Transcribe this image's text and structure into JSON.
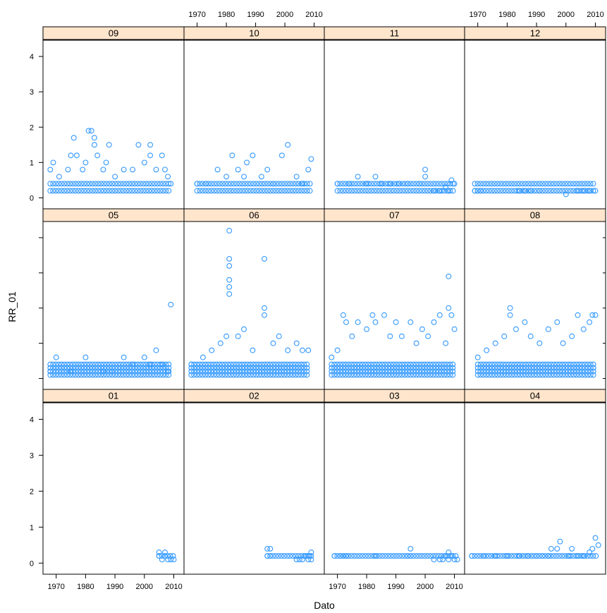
{
  "chart_data": {
    "type": "scatter",
    "title": "",
    "xlabel": "Dato",
    "ylabel": "RR_01",
    "xlim": [
      1966,
      2013
    ],
    "ylim": [
      -0.25,
      4.4
    ],
    "x_ticks": [
      "1970",
      "1980",
      "1990",
      "2000",
      "2010"
    ],
    "y_ticks": [
      "0",
      "1",
      "2",
      "3",
      "4"
    ],
    "grid": false,
    "legend": "none",
    "point_color": "#3399ff",
    "strip_color": "#ffe5cc",
    "panels": [
      {
        "label": "09",
        "row": 0,
        "col": 0,
        "points": [
          [
            1968,
            0.8
          ],
          [
            1969,
            1.0
          ],
          [
            1971,
            0.6
          ],
          [
            1974,
            0.8
          ],
          [
            1975,
            1.2
          ],
          [
            1976,
            1.7
          ],
          [
            1977,
            1.2
          ],
          [
            1979,
            0.8
          ],
          [
            1980,
            1.0
          ],
          [
            1981,
            1.9
          ],
          [
            1982,
            1.9
          ],
          [
            1983,
            1.5
          ],
          [
            1983,
            1.7
          ],
          [
            1984,
            1.2
          ],
          [
            1986,
            0.8
          ],
          [
            1987,
            1.0
          ],
          [
            1988,
            1.5
          ],
          [
            1990,
            0.6
          ],
          [
            1993,
            0.8
          ],
          [
            1996,
            0.8
          ],
          [
            1998,
            1.5
          ],
          [
            2000,
            1.0
          ],
          [
            2002,
            1.5
          ],
          [
            2002,
            1.2
          ],
          [
            2004,
            0.8
          ],
          [
            2006,
            1.2
          ],
          [
            2007,
            0.8
          ],
          [
            2008,
            0.6
          ],
          [
            2009,
            0.4
          ]
        ]
      },
      {
        "label": "10",
        "row": 0,
        "col": 1,
        "points": [
          [
            1970,
            0.4
          ],
          [
            1973,
            0.4
          ],
          [
            1977,
            0.8
          ],
          [
            1980,
            0.6
          ],
          [
            1982,
            1.2
          ],
          [
            1984,
            0.8
          ],
          [
            1986,
            0.6
          ],
          [
            1987,
            1.0
          ],
          [
            1989,
            1.2
          ],
          [
            1992,
            0.6
          ],
          [
            1994,
            0.8
          ],
          [
            1996,
            0.4
          ],
          [
            1999,
            1.2
          ],
          [
            2001,
            1.5
          ],
          [
            2004,
            0.6
          ],
          [
            2006,
            0.4
          ],
          [
            2008,
            0.8
          ],
          [
            2009,
            1.1
          ]
        ]
      },
      {
        "label": "11",
        "row": 0,
        "col": 2,
        "points": [
          [
            1970,
            0.4
          ],
          [
            1974,
            0.4
          ],
          [
            1977,
            0.6
          ],
          [
            1980,
            0.4
          ],
          [
            1983,
            0.6
          ],
          [
            1985,
            0.4
          ],
          [
            1988,
            0.4
          ],
          [
            1991,
            0.4
          ],
          [
            1994,
            0.4
          ],
          [
            1998,
            0.4
          ],
          [
            2000,
            0.8
          ],
          [
            2000,
            0.6
          ],
          [
            2003,
            0.2
          ],
          [
            2005,
            0.2
          ],
          [
            2007,
            0.3
          ],
          [
            2008,
            0.2
          ],
          [
            2009,
            0.5
          ],
          [
            2010,
            0.4
          ]
        ]
      },
      {
        "label": "12",
        "row": 0,
        "col": 3,
        "points": [
          [
            1969,
            0.2
          ],
          [
            1970,
            0.2
          ],
          [
            1971,
            0.2
          ],
          [
            1984,
            0.2
          ],
          [
            1986,
            0.2
          ],
          [
            1988,
            0.2
          ],
          [
            1991,
            0.2
          ],
          [
            2000,
            0.1
          ],
          [
            2004,
            0.2
          ],
          [
            2006,
            0.2
          ],
          [
            2008,
            0.2
          ],
          [
            2010,
            0.2
          ]
        ]
      },
      {
        "label": "05",
        "row": 1,
        "col": 0,
        "points": [
          [
            1968,
            0.2
          ],
          [
            1970,
            0.6
          ],
          [
            1975,
            0.2
          ],
          [
            1980,
            0.6
          ],
          [
            1986,
            0.2
          ],
          [
            1989,
            0.2
          ],
          [
            1993,
            0.6
          ],
          [
            1996,
            0.4
          ],
          [
            2000,
            0.6
          ],
          [
            2002,
            0.4
          ],
          [
            2004,
            0.8
          ],
          [
            2006,
            0.4
          ],
          [
            2008,
            0.2
          ],
          [
            2009,
            2.1
          ]
        ]
      },
      {
        "label": "06",
        "row": 1,
        "col": 1,
        "points": [
          [
            1968,
            0.4
          ],
          [
            1972,
            0.6
          ],
          [
            1975,
            0.8
          ],
          [
            1978,
            1.0
          ],
          [
            1980,
            1.2
          ],
          [
            1981,
            4.2
          ],
          [
            1981,
            3.4
          ],
          [
            1981,
            3.2
          ],
          [
            1981,
            2.8
          ],
          [
            1981,
            2.6
          ],
          [
            1981,
            2.4
          ],
          [
            1984,
            1.2
          ],
          [
            1986,
            1.4
          ],
          [
            1989,
            0.8
          ],
          [
            1993,
            3.4
          ],
          [
            1993,
            2.0
          ],
          [
            1993,
            1.8
          ],
          [
            1996,
            1.0
          ],
          [
            1998,
            1.2
          ],
          [
            2001,
            0.8
          ],
          [
            2004,
            1.0
          ],
          [
            2006,
            0.8
          ],
          [
            2008,
            0.8
          ]
        ]
      },
      {
        "label": "07",
        "row": 1,
        "col": 2,
        "points": [
          [
            1968,
            0.6
          ],
          [
            1970,
            0.8
          ],
          [
            1972,
            1.8
          ],
          [
            1973,
            1.6
          ],
          [
            1975,
            1.2
          ],
          [
            1977,
            1.6
          ],
          [
            1980,
            1.4
          ],
          [
            1982,
            1.8
          ],
          [
            1983,
            1.6
          ],
          [
            1986,
            1.8
          ],
          [
            1988,
            1.2
          ],
          [
            1990,
            1.6
          ],
          [
            1992,
            1.2
          ],
          [
            1995,
            1.6
          ],
          [
            1997,
            1.0
          ],
          [
            1999,
            1.4
          ],
          [
            2001,
            1.2
          ],
          [
            2003,
            1.6
          ],
          [
            2005,
            1.8
          ],
          [
            2007,
            1.0
          ],
          [
            2008,
            2.9
          ],
          [
            2008,
            2.0
          ],
          [
            2009,
            1.8
          ],
          [
            2010,
            1.4
          ]
        ]
      },
      {
        "label": "08",
        "row": 1,
        "col": 3,
        "points": [
          [
            1970,
            0.6
          ],
          [
            1973,
            0.8
          ],
          [
            1976,
            1.0
          ],
          [
            1979,
            1.2
          ],
          [
            1981,
            2.0
          ],
          [
            1981,
            1.8
          ],
          [
            1983,
            1.4
          ],
          [
            1986,
            1.6
          ],
          [
            1988,
            1.2
          ],
          [
            1991,
            1.0
          ],
          [
            1994,
            1.4
          ],
          [
            1997,
            1.6
          ],
          [
            1999,
            1.0
          ],
          [
            2002,
            1.2
          ],
          [
            2004,
            1.8
          ],
          [
            2006,
            1.4
          ],
          [
            2008,
            1.6
          ],
          [
            2009,
            1.8
          ],
          [
            2010,
            1.8
          ]
        ]
      },
      {
        "label": "01",
        "row": 2,
        "col": 0,
        "points": [
          [
            2005,
            0.2
          ],
          [
            2005,
            0.3
          ],
          [
            2006,
            0.1
          ],
          [
            2007,
            0.3
          ],
          [
            2007,
            0.2
          ],
          [
            2008,
            0.1
          ],
          [
            2009,
            0.1
          ],
          [
            2010,
            0.1
          ]
        ]
      },
      {
        "label": "02",
        "row": 2,
        "col": 1,
        "points": [
          [
            1994,
            0.4
          ],
          [
            1994,
            0.2
          ],
          [
            1995,
            0.4
          ],
          [
            1995,
            0.2
          ],
          [
            2004,
            0.1
          ],
          [
            2005,
            0.1
          ],
          [
            2006,
            0.1
          ],
          [
            2007,
            0.2
          ],
          [
            2008,
            0.2
          ],
          [
            2008,
            0.1
          ],
          [
            2009,
            0.3
          ],
          [
            2009,
            0.2
          ],
          [
            2009,
            0.1
          ]
        ]
      },
      {
        "label": "03",
        "row": 2,
        "col": 2,
        "points": [
          [
            1969,
            0.2
          ],
          [
            1971,
            0.2
          ],
          [
            1972,
            0.2
          ],
          [
            1973,
            0.2
          ],
          [
            1983,
            0.2
          ],
          [
            1994,
            0.2
          ],
          [
            1995,
            0.4
          ],
          [
            1995,
            0.2
          ],
          [
            2003,
            0.1
          ],
          [
            2005,
            0.1
          ],
          [
            2006,
            0.1
          ],
          [
            2007,
            0.2
          ],
          [
            2008,
            0.3
          ],
          [
            2008,
            0.1
          ],
          [
            2009,
            0.2
          ],
          [
            2010,
            0.1
          ],
          [
            2011,
            0.1
          ]
        ]
      },
      {
        "label": "04",
        "row": 2,
        "col": 3,
        "points": [
          [
            1968,
            0.2
          ],
          [
            1972,
            0.2
          ],
          [
            1976,
            0.2
          ],
          [
            1980,
            0.2
          ],
          [
            1984,
            0.2
          ],
          [
            1987,
            0.2
          ],
          [
            1990,
            0.2
          ],
          [
            1992,
            0.2
          ],
          [
            1994,
            0.2
          ],
          [
            1995,
            0.4
          ],
          [
            1997,
            0.4
          ],
          [
            1998,
            0.6
          ],
          [
            2001,
            0.2
          ],
          [
            2002,
            0.4
          ],
          [
            2004,
            0.2
          ],
          [
            2006,
            0.2
          ],
          [
            2008,
            0.3
          ],
          [
            2009,
            0.4
          ],
          [
            2010,
            0.7
          ],
          [
            2011,
            0.5
          ]
        ]
      }
    ]
  }
}
